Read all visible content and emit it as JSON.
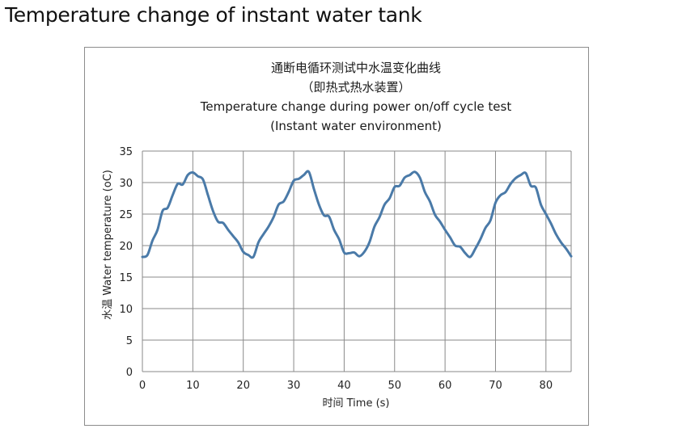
{
  "page": {
    "title": "Temperature change of instant water tank"
  },
  "chart_data": {
    "type": "line",
    "title_lines": [
      "通断电循环测试中水温变化曲线",
      "（即热式热水装置）",
      "Temperature change during power on/off cycle test",
      "(Instant water environment)"
    ],
    "xlabel": "时间 Time (s)",
    "ylabel": "水温 Water temperature (oC)",
    "xlim": [
      0,
      85
    ],
    "ylim": [
      0,
      35
    ],
    "xticks": [
      0,
      10,
      20,
      30,
      40,
      50,
      60,
      70,
      80
    ],
    "yticks": [
      0,
      5,
      10,
      15,
      20,
      25,
      30,
      35
    ],
    "grid": true,
    "line_color": "#4a7aa8",
    "series": [
      {
        "x": [
          0,
          1,
          2,
          3,
          4,
          5,
          6,
          7,
          8,
          9,
          10,
          11,
          12,
          13,
          14,
          15,
          16,
          17,
          18,
          19,
          20,
          21,
          22,
          23,
          24,
          25,
          26,
          27,
          28,
          29,
          30,
          31,
          32,
          33,
          34,
          35,
          36,
          37,
          38,
          39,
          40,
          41,
          42,
          43,
          44,
          45,
          46,
          47,
          48,
          49,
          50,
          51,
          52,
          53,
          54,
          55,
          56,
          57,
          58,
          59,
          60,
          61,
          62,
          63,
          64,
          65,
          66,
          67,
          68,
          69,
          70,
          71,
          72,
          73,
          74,
          75,
          76,
          77,
          78,
          79,
          80,
          81,
          82,
          83,
          84,
          85
        ],
        "y": [
          18.2,
          18.5,
          20.8,
          22.5,
          25.5,
          26.0,
          28.0,
          29.8,
          29.7,
          31.2,
          31.6,
          31.0,
          30.5,
          28.0,
          25.5,
          23.8,
          23.6,
          22.5,
          21.5,
          20.5,
          19.0,
          18.5,
          18.2,
          20.5,
          21.8,
          23.0,
          24.5,
          26.5,
          27.0,
          28.5,
          30.3,
          30.6,
          31.2,
          31.7,
          29.0,
          26.5,
          24.8,
          24.6,
          22.5,
          21.0,
          18.9,
          18.8,
          18.9,
          18.3,
          19.0,
          20.5,
          23.0,
          24.5,
          26.5,
          27.5,
          29.3,
          29.5,
          30.8,
          31.2,
          31.7,
          30.8,
          28.5,
          27.0,
          24.9,
          23.8,
          22.5,
          21.3,
          20.0,
          19.8,
          18.8,
          18.2,
          19.5,
          21.0,
          22.8,
          24.0,
          26.8,
          28.0,
          28.5,
          29.8,
          30.7,
          31.2,
          31.5,
          29.5,
          29.2,
          26.5,
          25.0,
          23.5,
          21.8,
          20.5,
          19.5,
          18.3
        ]
      }
    ]
  }
}
